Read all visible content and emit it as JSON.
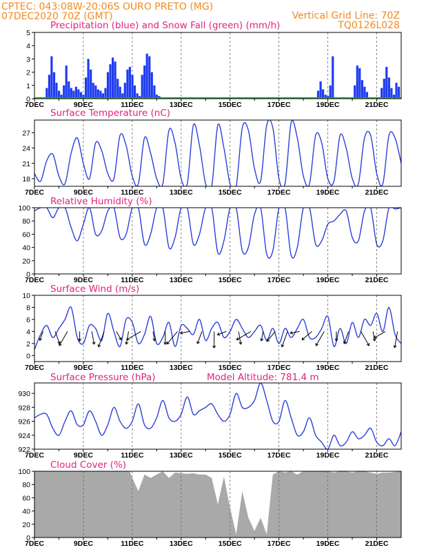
{
  "header": {
    "line1": "CPTEC:   043:08W-20:06S   OURO PRETO (MG)",
    "line2": "07DEC2020 70Z (GMT)",
    "vgrid": "Vertical Grid Line: 70Z",
    "code": "TQ0126L028"
  },
  "colors": {
    "header": "#f28a1e",
    "title": "#e0237d",
    "line": "#2a3fd8",
    "precip": "#1f3cf0",
    "snow": "#22aa22",
    "cloud": "#a9a9a9"
  },
  "x_ticks": [
    "7DEC",
    "9DEC",
    "11DEC",
    "13DEC",
    "15DEC",
    "17DEC",
    "19DEC",
    "21DEC"
  ],
  "chart_data": [
    {
      "type": "bar",
      "title": "Precipitation (blue) and Snow Fall (green) (mm/h)",
      "xlim": [
        0,
        15
      ],
      "ylim": [
        0,
        5
      ],
      "yticks": [
        0,
        1,
        2,
        3,
        4,
        5
      ],
      "series": [
        {
          "name": "Precipitation",
          "x": [
            0.5,
            0.6,
            0.7,
            0.8,
            0.9,
            1.0,
            1.1,
            1.2,
            1.3,
            1.4,
            1.5,
            1.6,
            1.7,
            1.8,
            1.9,
            2.0,
            2.1,
            2.2,
            2.3,
            2.4,
            2.5,
            2.6,
            2.7,
            2.8,
            2.9,
            3.0,
            3.1,
            3.2,
            3.3,
            3.4,
            3.5,
            3.6,
            3.7,
            3.8,
            3.9,
            4.0,
            4.1,
            4.2,
            4.3,
            4.4,
            4.5,
            4.6,
            4.7,
            4.8,
            4.9,
            5.0,
            5.1,
            5.2,
            5.3,
            5.4,
            5.5,
            5.6,
            5.7,
            5.8,
            5.9,
            11.6,
            11.7,
            11.8,
            11.9,
            12.0,
            12.1,
            12.2,
            13.1,
            13.2,
            13.3,
            13.4,
            13.5,
            13.6,
            14.2,
            14.3,
            14.4,
            14.5,
            14.6,
            14.7,
            14.8,
            14.9
          ],
          "values": [
            0.8,
            1.8,
            3.2,
            2.0,
            1.2,
            0.6,
            0.3,
            1.0,
            2.5,
            1.3,
            0.8,
            0.6,
            0.9,
            0.7,
            0.5,
            0.3,
            1.6,
            3.0,
            2.2,
            1.2,
            1.0,
            0.7,
            0.6,
            0.4,
            0.8,
            2.0,
            2.6,
            3.1,
            2.8,
            1.5,
            0.9,
            0.4,
            1.2,
            2.2,
            2.4,
            1.8,
            1.0,
            0.4,
            0.2,
            1.8,
            2.5,
            3.4,
            3.2,
            2.0,
            1.0,
            0.3,
            0.2,
            0.1,
            0.1,
            0.1,
            0.1,
            0.1,
            0.1,
            0.1,
            0.1,
            0.6,
            1.3,
            0.7,
            0.3,
            0.2,
            1.0,
            3.2,
            1.0,
            2.5,
            2.3,
            1.4,
            0.9,
            0.5,
            0.8,
            1.5,
            2.4,
            1.6,
            0.8,
            0.3,
            1.2,
            0.9
          ]
        },
        {
          "name": "Snow Fall",
          "values": [
            0
          ]
        }
      ]
    },
    {
      "type": "line",
      "title": "Surface Temperature (nC)",
      "xlim": [
        0,
        15
      ],
      "ylim": [
        16.5,
        29.5
      ],
      "yticks": [
        18,
        21,
        24,
        27
      ],
      "series": [
        {
          "name": "Surface Temperature",
          "x": [
            0,
            0.25,
            0.5,
            0.75,
            1,
            1.25,
            1.5,
            1.75,
            2,
            2.25,
            2.5,
            2.75,
            3,
            3.25,
            3.5,
            3.75,
            4,
            4.25,
            4.5,
            4.75,
            5,
            5.25,
            5.5,
            5.75,
            6,
            6.25,
            6.5,
            6.75,
            7,
            7.25,
            7.5,
            7.75,
            8,
            8.25,
            8.5,
            8.75,
            9,
            9.25,
            9.5,
            9.75,
            10,
            10.25,
            10.5,
            10.75,
            11,
            11.25,
            11.5,
            11.75,
            12,
            12.25,
            12.5,
            12.75,
            13,
            13.25,
            13.5,
            13.75,
            14,
            14.25,
            14.5,
            14.75,
            15
          ],
          "values": [
            19.0,
            17.5,
            21.5,
            22.8,
            18.5,
            17.0,
            23.0,
            26.0,
            21.0,
            18.0,
            25.0,
            23.5,
            19.0,
            18.0,
            26.5,
            24.5,
            18.5,
            17.0,
            26.0,
            23.0,
            18.0,
            17.0,
            27.5,
            25.0,
            18.0,
            17.0,
            28.5,
            24.5,
            17.0,
            16.5,
            28.5,
            24.0,
            17.0,
            16.5,
            28.0,
            27.5,
            20.0,
            17.5,
            28.5,
            28.0,
            18.0,
            17.0,
            29.0,
            26.0,
            18.5,
            17.0,
            26.5,
            25.0,
            18.0,
            17.5,
            26.5,
            24.0,
            18.0,
            17.0,
            26.0,
            26.5,
            19.0,
            17.0,
            26.5,
            26.0,
            21.0
          ]
        }
      ]
    },
    {
      "type": "line",
      "title": "Relative Humidity (%)",
      "xlim": [
        0,
        15
      ],
      "ylim": [
        0,
        100
      ],
      "yticks": [
        0,
        20,
        40,
        60,
        80,
        100
      ],
      "series": [
        {
          "name": "Relative Humidity",
          "x": [
            0,
            0.25,
            0.5,
            0.75,
            1,
            1.25,
            1.5,
            1.75,
            2,
            2.25,
            2.5,
            2.75,
            3,
            3.25,
            3.5,
            3.75,
            4,
            4.25,
            4.5,
            4.75,
            5,
            5.25,
            5.5,
            5.75,
            6,
            6.25,
            6.5,
            6.75,
            7,
            7.25,
            7.5,
            7.75,
            8,
            8.25,
            8.5,
            8.75,
            9,
            9.25,
            9.5,
            9.75,
            10,
            10.25,
            10.5,
            10.75,
            11,
            11.25,
            11.5,
            11.75,
            12,
            12.25,
            12.5,
            12.75,
            13,
            13.25,
            13.5,
            13.75,
            14,
            14.25,
            14.5,
            14.75,
            15
          ],
          "values": [
            95,
            100,
            100,
            85,
            100,
            100,
            70,
            50,
            75,
            100,
            60,
            65,
            95,
            100,
            55,
            60,
            100,
            100,
            45,
            60,
            100,
            100,
            40,
            55,
            100,
            100,
            45,
            60,
            100,
            100,
            32,
            50,
            100,
            100,
            35,
            40,
            90,
            100,
            30,
            35,
            100,
            100,
            28,
            40,
            100,
            100,
            45,
            50,
            75,
            80,
            90,
            95,
            55,
            50,
            95,
            100,
            45,
            50,
            100,
            98,
            100
          ]
        }
      ]
    },
    {
      "type": "line",
      "title": "Surface Wind (m/s)",
      "xlim": [
        0,
        15
      ],
      "ylim": [
        -1,
        10
      ],
      "yticks": [
        0,
        2,
        4,
        6,
        8,
        10
      ],
      "series": [
        {
          "name": "Surface Wind",
          "x": [
            0,
            0.25,
            0.5,
            0.75,
            1,
            1.25,
            1.5,
            1.75,
            2,
            2.25,
            2.5,
            2.75,
            3,
            3.25,
            3.5,
            3.75,
            4,
            4.25,
            4.5,
            4.75,
            5,
            5.25,
            5.5,
            5.75,
            6,
            6.25,
            6.5,
            6.75,
            7,
            7.25,
            7.5,
            7.75,
            8,
            8.25,
            8.5,
            8.75,
            9,
            9.25,
            9.5,
            9.75,
            10,
            10.25,
            10.5,
            10.75,
            11,
            11.25,
            11.5,
            11.75,
            12,
            12.25,
            12.5,
            12.75,
            13,
            13.25,
            13.5,
            13.75,
            14,
            14.25,
            14.5,
            14.75,
            15
          ],
          "values": [
            1.0,
            3.5,
            5.0,
            3.0,
            4.5,
            6.0,
            8.0,
            3.0,
            2.0,
            5.0,
            4.5,
            2.5,
            7.0,
            4.0,
            1.5,
            6.0,
            5.5,
            2.0,
            3.5,
            6.5,
            2.0,
            3.0,
            5.5,
            1.5,
            5.0,
            4.5,
            3.5,
            6.0,
            2.5,
            4.5,
            5.5,
            3.0,
            4.0,
            6.0,
            4.5,
            3.0,
            4.0,
            5.0,
            2.5,
            4.5,
            2.0,
            4.5,
            3.0,
            4.5,
            6.0,
            3.0,
            3.0,
            4.5,
            6.5,
            1.5,
            4.5,
            2.0,
            5.5,
            3.0,
            6.0,
            5.0,
            7.0,
            4.0,
            8.0,
            3.5,
            2.0
          ]
        }
      ]
    },
    {
      "type": "line",
      "title": "Surface Pressure (hPa)",
      "annotation": "Model Altitude: 781.4  m",
      "xlim": [
        0,
        15
      ],
      "ylim": [
        922,
        931.5
      ],
      "yticks": [
        922,
        924,
        926,
        928,
        930
      ],
      "series": [
        {
          "name": "Surface Pressure",
          "x": [
            0,
            0.25,
            0.5,
            0.75,
            1,
            1.25,
            1.5,
            1.75,
            2,
            2.25,
            2.5,
            2.75,
            3,
            3.25,
            3.5,
            3.75,
            4,
            4.25,
            4.5,
            4.75,
            5,
            5.25,
            5.5,
            5.75,
            6,
            6.25,
            6.5,
            6.75,
            7,
            7.25,
            7.5,
            7.75,
            8,
            8.25,
            8.5,
            8.75,
            9,
            9.25,
            9.5,
            9.75,
            10,
            10.25,
            10.5,
            10.75,
            11,
            11.25,
            11.5,
            11.75,
            12,
            12.25,
            12.5,
            12.75,
            13,
            13.25,
            13.5,
            13.75,
            14,
            14.25,
            14.5,
            14.75,
            15
          ],
          "values": [
            926.5,
            927.0,
            927.0,
            925.0,
            924.0,
            926.0,
            927.5,
            925.5,
            925.5,
            927.5,
            926.0,
            924.0,
            925.5,
            928.0,
            926.0,
            925.0,
            926.0,
            928.5,
            925.5,
            925.0,
            926.5,
            929.0,
            926.5,
            926.0,
            927.0,
            929.5,
            927.0,
            927.5,
            928.0,
            928.5,
            927.0,
            926.0,
            927.0,
            930.0,
            928.0,
            928.0,
            929.0,
            931.5,
            929.0,
            926.0,
            926.0,
            929.0,
            926.5,
            924.0,
            924.5,
            926.5,
            924.0,
            923.0,
            922.0,
            924.0,
            922.5,
            923.0,
            924.5,
            923.5,
            924.0,
            925.0,
            923.0,
            922.5,
            923.5,
            922.5,
            924.5
          ]
        }
      ]
    },
    {
      "type": "area",
      "title": "Cloud Cover (%)",
      "xlim": [
        0,
        15
      ],
      "ylim": [
        0,
        100
      ],
      "yticks": [
        0,
        20,
        40,
        60,
        80,
        100
      ],
      "series": [
        {
          "name": "Cloud Cover",
          "x": [
            0,
            0.25,
            0.5,
            0.75,
            1,
            1.25,
            1.5,
            1.75,
            2,
            2.25,
            2.5,
            2.75,
            3,
            3.25,
            3.5,
            3.75,
            3.9,
            4.0,
            4.25,
            4.5,
            4.75,
            5,
            5.25,
            5.5,
            5.75,
            6,
            6.25,
            6.5,
            6.75,
            7,
            7.25,
            7.5,
            7.75,
            8,
            8.25,
            8.5,
            8.75,
            9,
            9.25,
            9.5,
            9.75,
            10,
            10.25,
            10.5,
            10.75,
            11,
            11.25,
            11.5,
            11.75,
            12,
            12.25,
            12.5,
            12.75,
            13,
            13.25,
            13.5,
            13.75,
            14,
            14.25,
            14.5,
            14.75,
            15
          ],
          "values": [
            100,
            100,
            100,
            100,
            100,
            100,
            100,
            100,
            100,
            100,
            100,
            100,
            100,
            100,
            100,
            100,
            100,
            90,
            70,
            95,
            90,
            95,
            100,
            90,
            98,
            97,
            96,
            97,
            95,
            95,
            90,
            50,
            92,
            45,
            5,
            70,
            30,
            10,
            30,
            5,
            95,
            100,
            98,
            100,
            95,
            100,
            100,
            100,
            100,
            100,
            98,
            100,
            100,
            98,
            100,
            100,
            98,
            96,
            98,
            98,
            99,
            100
          ]
        }
      ]
    }
  ]
}
